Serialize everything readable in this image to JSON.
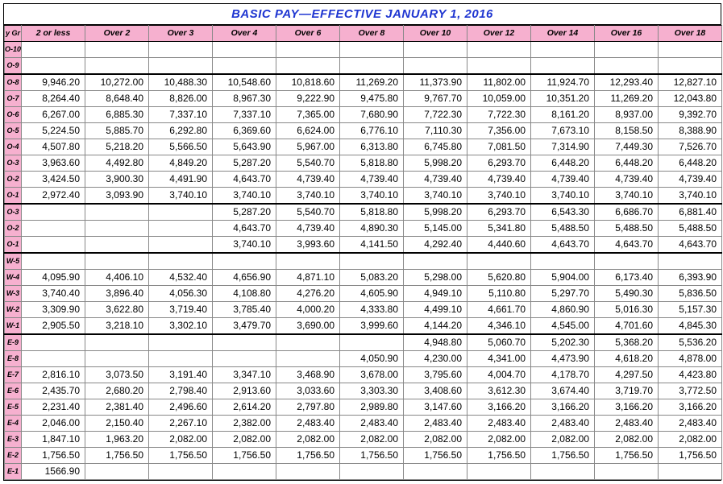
{
  "title": "BASIC PAY—EFFECTIVE JANUARY 1, 2016",
  "title_color": "#1f36d1",
  "grade_header": "y Gr",
  "header_bg": "#f6b0cf",
  "grade_bg": "#f6b0cf",
  "cell_bg": "#ffffff",
  "border_color": "#888888",
  "columns": [
    "2 or less",
    "Over 2",
    "Over 3",
    "Over 4",
    "Over 6",
    "Over 8",
    "Over 10",
    "Over 12",
    "Over 14",
    "Over 16",
    "Over 18"
  ],
  "rows": [
    {
      "grade": "O-10",
      "cells": [
        "",
        "",
        "",
        "",
        "",
        "",
        "",
        "",
        "",
        "",
        ""
      ]
    },
    {
      "grade": "O-9",
      "cells": [
        "",
        "",
        "",
        "",
        "",
        "",
        "",
        "",
        "",
        "",
        ""
      ],
      "sep": true
    },
    {
      "grade": "O-8",
      "cells": [
        "9,946.20",
        "10,272.00",
        "10,488.30",
        "10,548.60",
        "10,818.60",
        "11,269.20",
        "11,373.90",
        "11,802.00",
        "11,924.70",
        "12,293.40",
        "12,827.10"
      ]
    },
    {
      "grade": "O-7",
      "cells": [
        "8,264.40",
        "8,648.40",
        "8,826.00",
        "8,967.30",
        "9,222.90",
        "9,475.80",
        "9,767.70",
        "10,059.00",
        "10,351.20",
        "11,269.20",
        "12,043.80"
      ]
    },
    {
      "grade": "O-6",
      "cells": [
        "6,267.00",
        "6,885.30",
        "7,337.10",
        "7,337.10",
        "7,365.00",
        "7,680.90",
        "7,722.30",
        "7,722.30",
        "8,161.20",
        "8,937.00",
        "9,392.70"
      ]
    },
    {
      "grade": "O-5",
      "cells": [
        "5,224.50",
        "5,885.70",
        "6,292.80",
        "6,369.60",
        "6,624.00",
        "6,776.10",
        "7,110.30",
        "7,356.00",
        "7,673.10",
        "8,158.50",
        "8,388.90"
      ]
    },
    {
      "grade": "O-4",
      "cells": [
        "4,507.80",
        "5,218.20",
        "5,566.50",
        "5,643.90",
        "5,967.00",
        "6,313.80",
        "6,745.80",
        "7,081.50",
        "7,314.90",
        "7,449.30",
        "7,526.70"
      ]
    },
    {
      "grade": "O-3",
      "cells": [
        "3,963.60",
        "4,492.80",
        "4,849.20",
        "5,287.20",
        "5,540.70",
        "5,818.80",
        "5,998.20",
        "6,293.70",
        "6,448.20",
        "6,448.20",
        "6,448.20"
      ]
    },
    {
      "grade": "O-2",
      "cells": [
        "3,424.50",
        "3,900.30",
        "4,491.90",
        "4,643.70",
        "4,739.40",
        "4,739.40",
        "4,739.40",
        "4,739.40",
        "4,739.40",
        "4,739.40",
        "4,739.40"
      ]
    },
    {
      "grade": "O-1",
      "cells": [
        "2,972.40",
        "3,093.90",
        "3,740.10",
        "3,740.10",
        "3,740.10",
        "3,740.10",
        "3,740.10",
        "3,740.10",
        "3,740.10",
        "3,740.10",
        "3,740.10"
      ],
      "sep": true
    },
    {
      "grade": "O-3",
      "cells": [
        "",
        "",
        "",
        "5,287.20",
        "5,540.70",
        "5,818.80",
        "5,998.20",
        "6,293.70",
        "6,543.30",
        "6,686.70",
        "6,881.40"
      ]
    },
    {
      "grade": "O-2",
      "cells": [
        "",
        "",
        "",
        "4,643.70",
        "4,739.40",
        "4,890.30",
        "5,145.00",
        "5,341.80",
        "5,488.50",
        "5,488.50",
        "5,488.50"
      ]
    },
    {
      "grade": "O-1",
      "cells": [
        "",
        "",
        "",
        "3,740.10",
        "3,993.60",
        "4,141.50",
        "4,292.40",
        "4,440.60",
        "4,643.70",
        "4,643.70",
        "4,643.70"
      ],
      "sep": true
    },
    {
      "grade": "W-5",
      "cells": [
        "",
        "",
        "",
        "",
        "",
        "",
        "",
        "",
        "",
        "",
        ""
      ]
    },
    {
      "grade": "W-4",
      "cells": [
        "4,095.90",
        "4,406.10",
        "4,532.40",
        "4,656.90",
        "4,871.10",
        "5,083.20",
        "5,298.00",
        "5,620.80",
        "5,904.00",
        "6,173.40",
        "6,393.90"
      ]
    },
    {
      "grade": "W-3",
      "cells": [
        "3,740.40",
        "3,896.40",
        "4,056.30",
        "4,108.80",
        "4,276.20",
        "4,605.90",
        "4,949.10",
        "5,110.80",
        "5,297.70",
        "5,490.30",
        "5,836.50"
      ]
    },
    {
      "grade": "W-2",
      "cells": [
        "3,309.90",
        "3,622.80",
        "3,719.40",
        "3,785.40",
        "4,000.20",
        "4,333.80",
        "4,499.10",
        "4,661.70",
        "4,860.90",
        "5,016.30",
        "5,157.30"
      ]
    },
    {
      "grade": "W-1",
      "cells": [
        "2,905.50",
        "3,218.10",
        "3,302.10",
        "3,479.70",
        "3,690.00",
        "3,999.60",
        "4,144.20",
        "4,346.10",
        "4,545.00",
        "4,701.60",
        "4,845.30"
      ],
      "sep": true
    },
    {
      "grade": "E-9",
      "cells": [
        "",
        "",
        "",
        "",
        "",
        "",
        "4,948.80",
        "5,060.70",
        "5,202.30",
        "5,368.20",
        "5,536.20"
      ]
    },
    {
      "grade": "E-8",
      "cells": [
        "",
        "",
        "",
        "",
        "",
        "4,050.90",
        "4,230.00",
        "4,341.00",
        "4,473.90",
        "4,618.20",
        "4,878.00"
      ]
    },
    {
      "grade": "E-7",
      "cells": [
        "2,816.10",
        "3,073.50",
        "3,191.40",
        "3,347.10",
        "3,468.90",
        "3,678.00",
        "3,795.60",
        "4,004.70",
        "4,178.70",
        "4,297.50",
        "4,423.80"
      ]
    },
    {
      "grade": "E-6",
      "cells": [
        "2,435.70",
        "2,680.20",
        "2,798.40",
        "2,913.60",
        "3,033.60",
        "3,303.30",
        "3,408.60",
        "3,612.30",
        "3,674.40",
        "3,719.70",
        "3,772.50"
      ]
    },
    {
      "grade": "E-5",
      "cells": [
        "2,231.40",
        "2,381.40",
        "2,496.60",
        "2,614.20",
        "2,797.80",
        "2,989.80",
        "3,147.60",
        "3,166.20",
        "3,166.20",
        "3,166.20",
        "3,166.20"
      ]
    },
    {
      "grade": "E-4",
      "cells": [
        "2,046.00",
        "2,150.40",
        "2,267.10",
        "2,382.00",
        "2,483.40",
        "2,483.40",
        "2,483.40",
        "2,483.40",
        "2,483.40",
        "2,483.40",
        "2,483.40"
      ]
    },
    {
      "grade": "E-3",
      "cells": [
        "1,847.10",
        "1,963.20",
        "2,082.00",
        "2,082.00",
        "2,082.00",
        "2,082.00",
        "2,082.00",
        "2,082.00",
        "2,082.00",
        "2,082.00",
        "2,082.00"
      ]
    },
    {
      "grade": "E-2",
      "cells": [
        "1,756.50",
        "1,756.50",
        "1,756.50",
        "1,756.50",
        "1,756.50",
        "1,756.50",
        "1,756.50",
        "1,756.50",
        "1,756.50",
        "1,756.50",
        "1,756.50"
      ]
    },
    {
      "grade": "E-1",
      "cells": [
        "1566.90",
        "",
        "",
        "",
        "",
        "",
        "",
        "",
        "",
        "",
        ""
      ]
    }
  ]
}
